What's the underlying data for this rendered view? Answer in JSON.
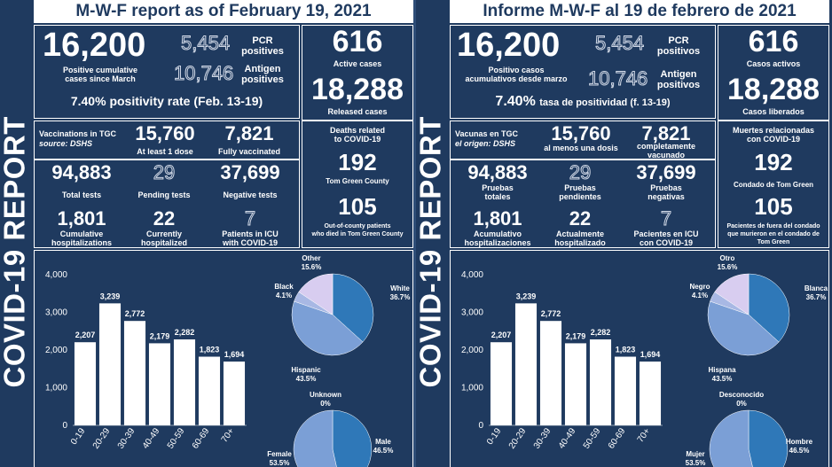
{
  "colors": {
    "background": "#1f3a5f",
    "panel_border": "#ffffff",
    "white_slice": "#2f78b8",
    "hispanic_slice": "#7b9fd6",
    "black_slice": "#a8b8e4",
    "other_slice": "#d8cdf0",
    "male_slice": "#2f78b8",
    "female_slice": "#7b9fd6"
  },
  "en": {
    "vertical_label": "COVID-19 REPORT",
    "title": "M-W-F report as of February 19, 2021",
    "positive_cumulative": "16,200",
    "positive_cumulative_label": "Positive cumulative\ncases since March",
    "pcr": "5,454",
    "pcr_label": "PCR\npositives",
    "antigen": "10,746",
    "antigen_label": "Antigen\npositives",
    "positivity_value": "7.40%",
    "positivity_text": "positivity rate (Feb. 13-19)",
    "active": "616",
    "active_label": "Active cases",
    "released": "18,288",
    "released_label": "Released cases",
    "vaccine_source_1": "Vaccinations in TGC",
    "vaccine_source_2": "source: DSHS",
    "dose1": "15,760",
    "dose1_label": "At least 1 dose",
    "fully": "7,821",
    "fully_label": "Fully vaccinated",
    "deaths_label": "Deaths related\nto COVID-19",
    "deaths_tgc": "192",
    "deaths_tgc_label": "Tom Green County",
    "total_tests": "94,883",
    "total_tests_label": "Total tests",
    "pending": "29",
    "pending_label": "Pending tests",
    "negative": "37,699",
    "negative_label": "Negative tests",
    "cum_hosp": "1,801",
    "cum_hosp_label": "Cumulative\nhospitalizations",
    "curr_hosp": "22",
    "curr_hosp_label": "Currently\nhospitalized",
    "icu": "7",
    "icu_label": "Patients in ICU\nwith COVID-19",
    "deaths_ooc": "105",
    "deaths_ooc_label": "Out-of-county patients\nwho died in Tom Green County",
    "race_labels": {
      "white": "White",
      "hispanic": "Hispanic",
      "black": "Black",
      "other": "Other"
    },
    "sex_labels": {
      "male": "Male",
      "female": "Female",
      "unknown": "Unknown"
    }
  },
  "es": {
    "vertical_label": "COVID-19 REPORT",
    "title": "Informe M-W-F al 19 de febrero de 2021",
    "positive_cumulative": "16,200",
    "positive_cumulative_label": "Positivo casos\nacumulativos desde marzo",
    "pcr": "5,454",
    "pcr_label": "PCR\npositivos",
    "antigen": "10,746",
    "antigen_label": "Antigen\npositivos",
    "positivity_value": "7.40%",
    "positivity_text": "tasa de positividad (f. 13-19)",
    "active": "616",
    "active_label": "Casos activos",
    "released": "18,288",
    "released_label": "Casos liberados",
    "vaccine_source_1": "Vacunas en TGC",
    "vaccine_source_2": "el origen: DSHS",
    "dose1": "15,760",
    "dose1_label": "al menos una dosis",
    "fully": "7,821",
    "fully_label": "completamente\nvacunado",
    "deaths_label": "Muertes relacionadas\ncon COVID-19",
    "deaths_tgc": "192",
    "deaths_tgc_label": "Condado de Tom Green",
    "total_tests": "94,883",
    "total_tests_label": "Pruebas\ntotales",
    "pending": "29",
    "pending_label": "Pruebas\npendientes",
    "negative": "37,699",
    "negative_label": "Pruebas\nnegativas",
    "cum_hosp": "1,801",
    "cum_hosp_label": "Acumulativo\nhospitalizaciones",
    "curr_hosp": "22",
    "curr_hosp_label": "Actualmente\nhospitalizado",
    "icu": "7",
    "icu_label": "Pacientes en ICU\ncon COVID-19",
    "deaths_ooc": "105",
    "deaths_ooc_label": "Pacientes de fuera del condado\nque murieron en el condado de\nTom Green",
    "race_labels": {
      "white": "Blanca",
      "hispanic": "Hispana",
      "black": "Negro",
      "other": "Otro"
    },
    "sex_labels": {
      "male": "Hombre",
      "female": "Mujer",
      "unknown": "Desconocido"
    }
  },
  "chart_data": [
    {
      "type": "bar",
      "title": "",
      "categories": [
        "0-19",
        "20-29",
        "30-39",
        "40-49",
        "50-59",
        "60-69",
        "70+"
      ],
      "values": [
        2207,
        3239,
        2772,
        2179,
        2282,
        1823,
        1694
      ],
      "value_labels": [
        "2,207",
        "3,239",
        "2,772",
        "2,179",
        "2,282",
        "1,823",
        "1,694"
      ],
      "yticks": [
        "0",
        "1,000",
        "2,000",
        "3,000",
        "4,000"
      ],
      "ylim": [
        0,
        4000
      ],
      "xlabel": "",
      "ylabel": ""
    },
    {
      "type": "pie",
      "title": "",
      "labels": [
        "White",
        "Hispanic",
        "Black",
        "Other"
      ],
      "values": [
        36.7,
        43.5,
        4.1,
        15.6
      ],
      "value_labels": [
        "36.7%",
        "43.5%",
        "4.1%",
        "15.6%"
      ]
    },
    {
      "type": "pie",
      "title": "",
      "labels": [
        "Male",
        "Female",
        "Unknown"
      ],
      "values": [
        46.5,
        53.5,
        0
      ],
      "value_labels": [
        "46.5%",
        "53.5%",
        "0%"
      ]
    }
  ]
}
